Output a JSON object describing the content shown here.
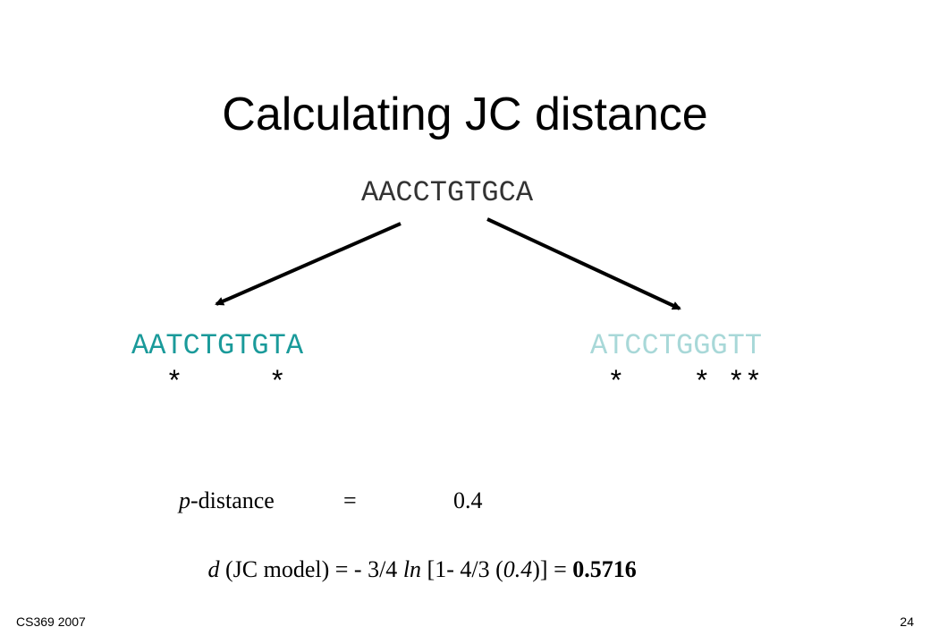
{
  "slide": {
    "title": "Calculating JC distance",
    "ancestor": "AACCTGTGCA",
    "left": {
      "sequence": "AATCTGTGTA",
      "marks": "  *     *"
    },
    "right": {
      "sequence": "ATCCTGGGTT",
      "marks": " *    * **"
    },
    "p_distance": {
      "label_italic": "p",
      "label": "-distance",
      "equals": "=",
      "value": "0.4"
    },
    "formula": [
      "d",
      " (JC model) = - 3/4 ",
      "ln",
      " [1- 4/3 (",
      "0.4",
      ")] = ",
      "0.5716"
    ],
    "footer": {
      "course": "CS369 2007",
      "page": "24"
    }
  }
}
